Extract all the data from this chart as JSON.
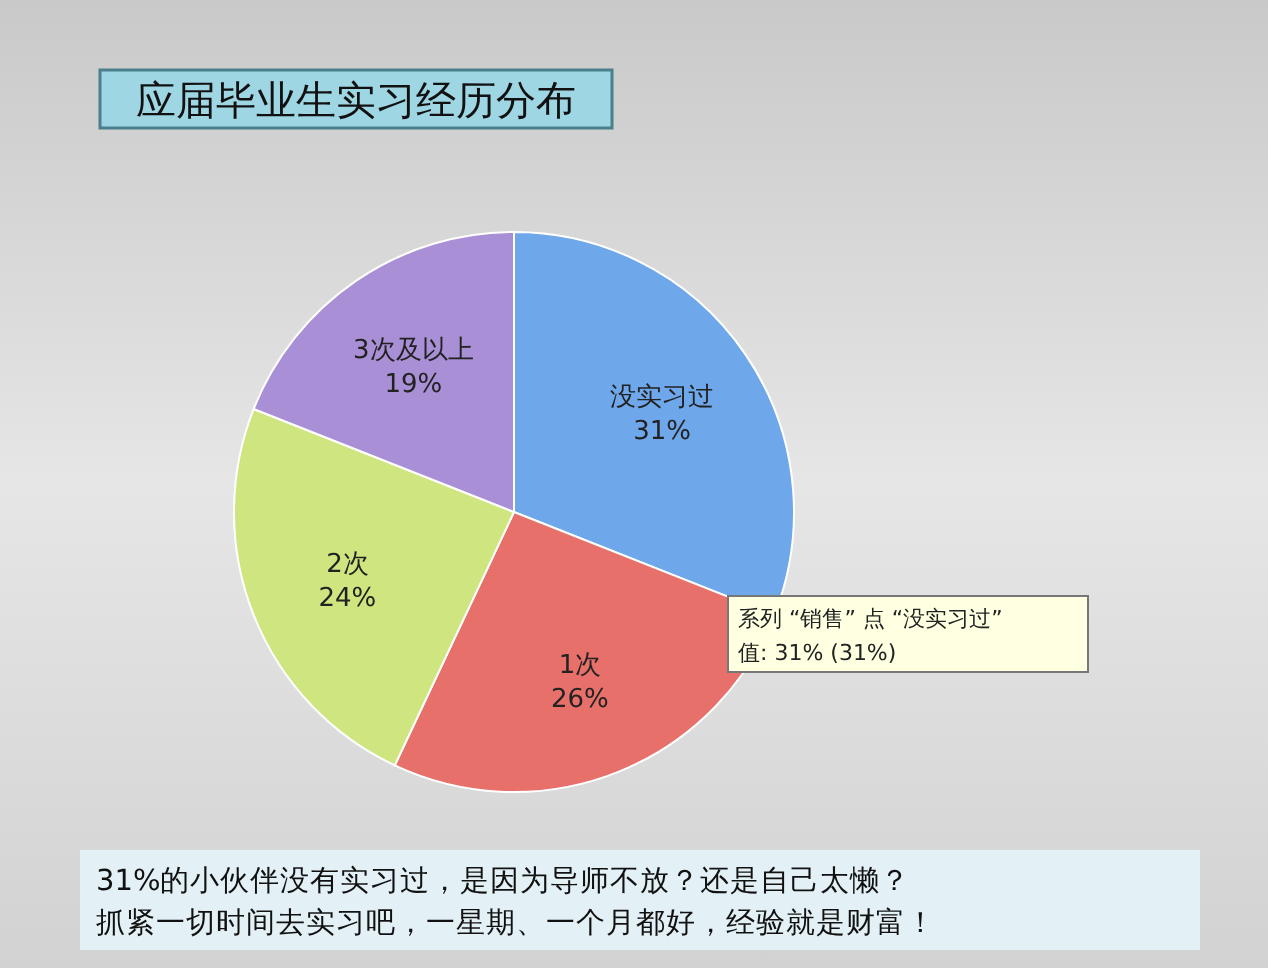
{
  "chart_data": {
    "type": "pie",
    "title": "应届毕业生实习经历分布",
    "categories": [
      "没实习过",
      "1次",
      "2次",
      "3次及以上"
    ],
    "values": [
      31,
      26,
      24,
      19
    ],
    "value_labels": [
      "31%",
      "26%",
      "24%",
      "19%"
    ],
    "colors": [
      "#6fa8ea",
      "#e8706a",
      "#cfe57f",
      "#a98fd6"
    ],
    "annotations": [
      "系列 “销售” 点 “没实习过”",
      "值: 31% (31%)",
      "31%的小伙伴没有实习过，是因为导师不放？还是自己太懒？",
      "抓紧一切时间去实习吧，一星期、一个月都好，经验就是财富！"
    ],
    "legend": false
  }
}
